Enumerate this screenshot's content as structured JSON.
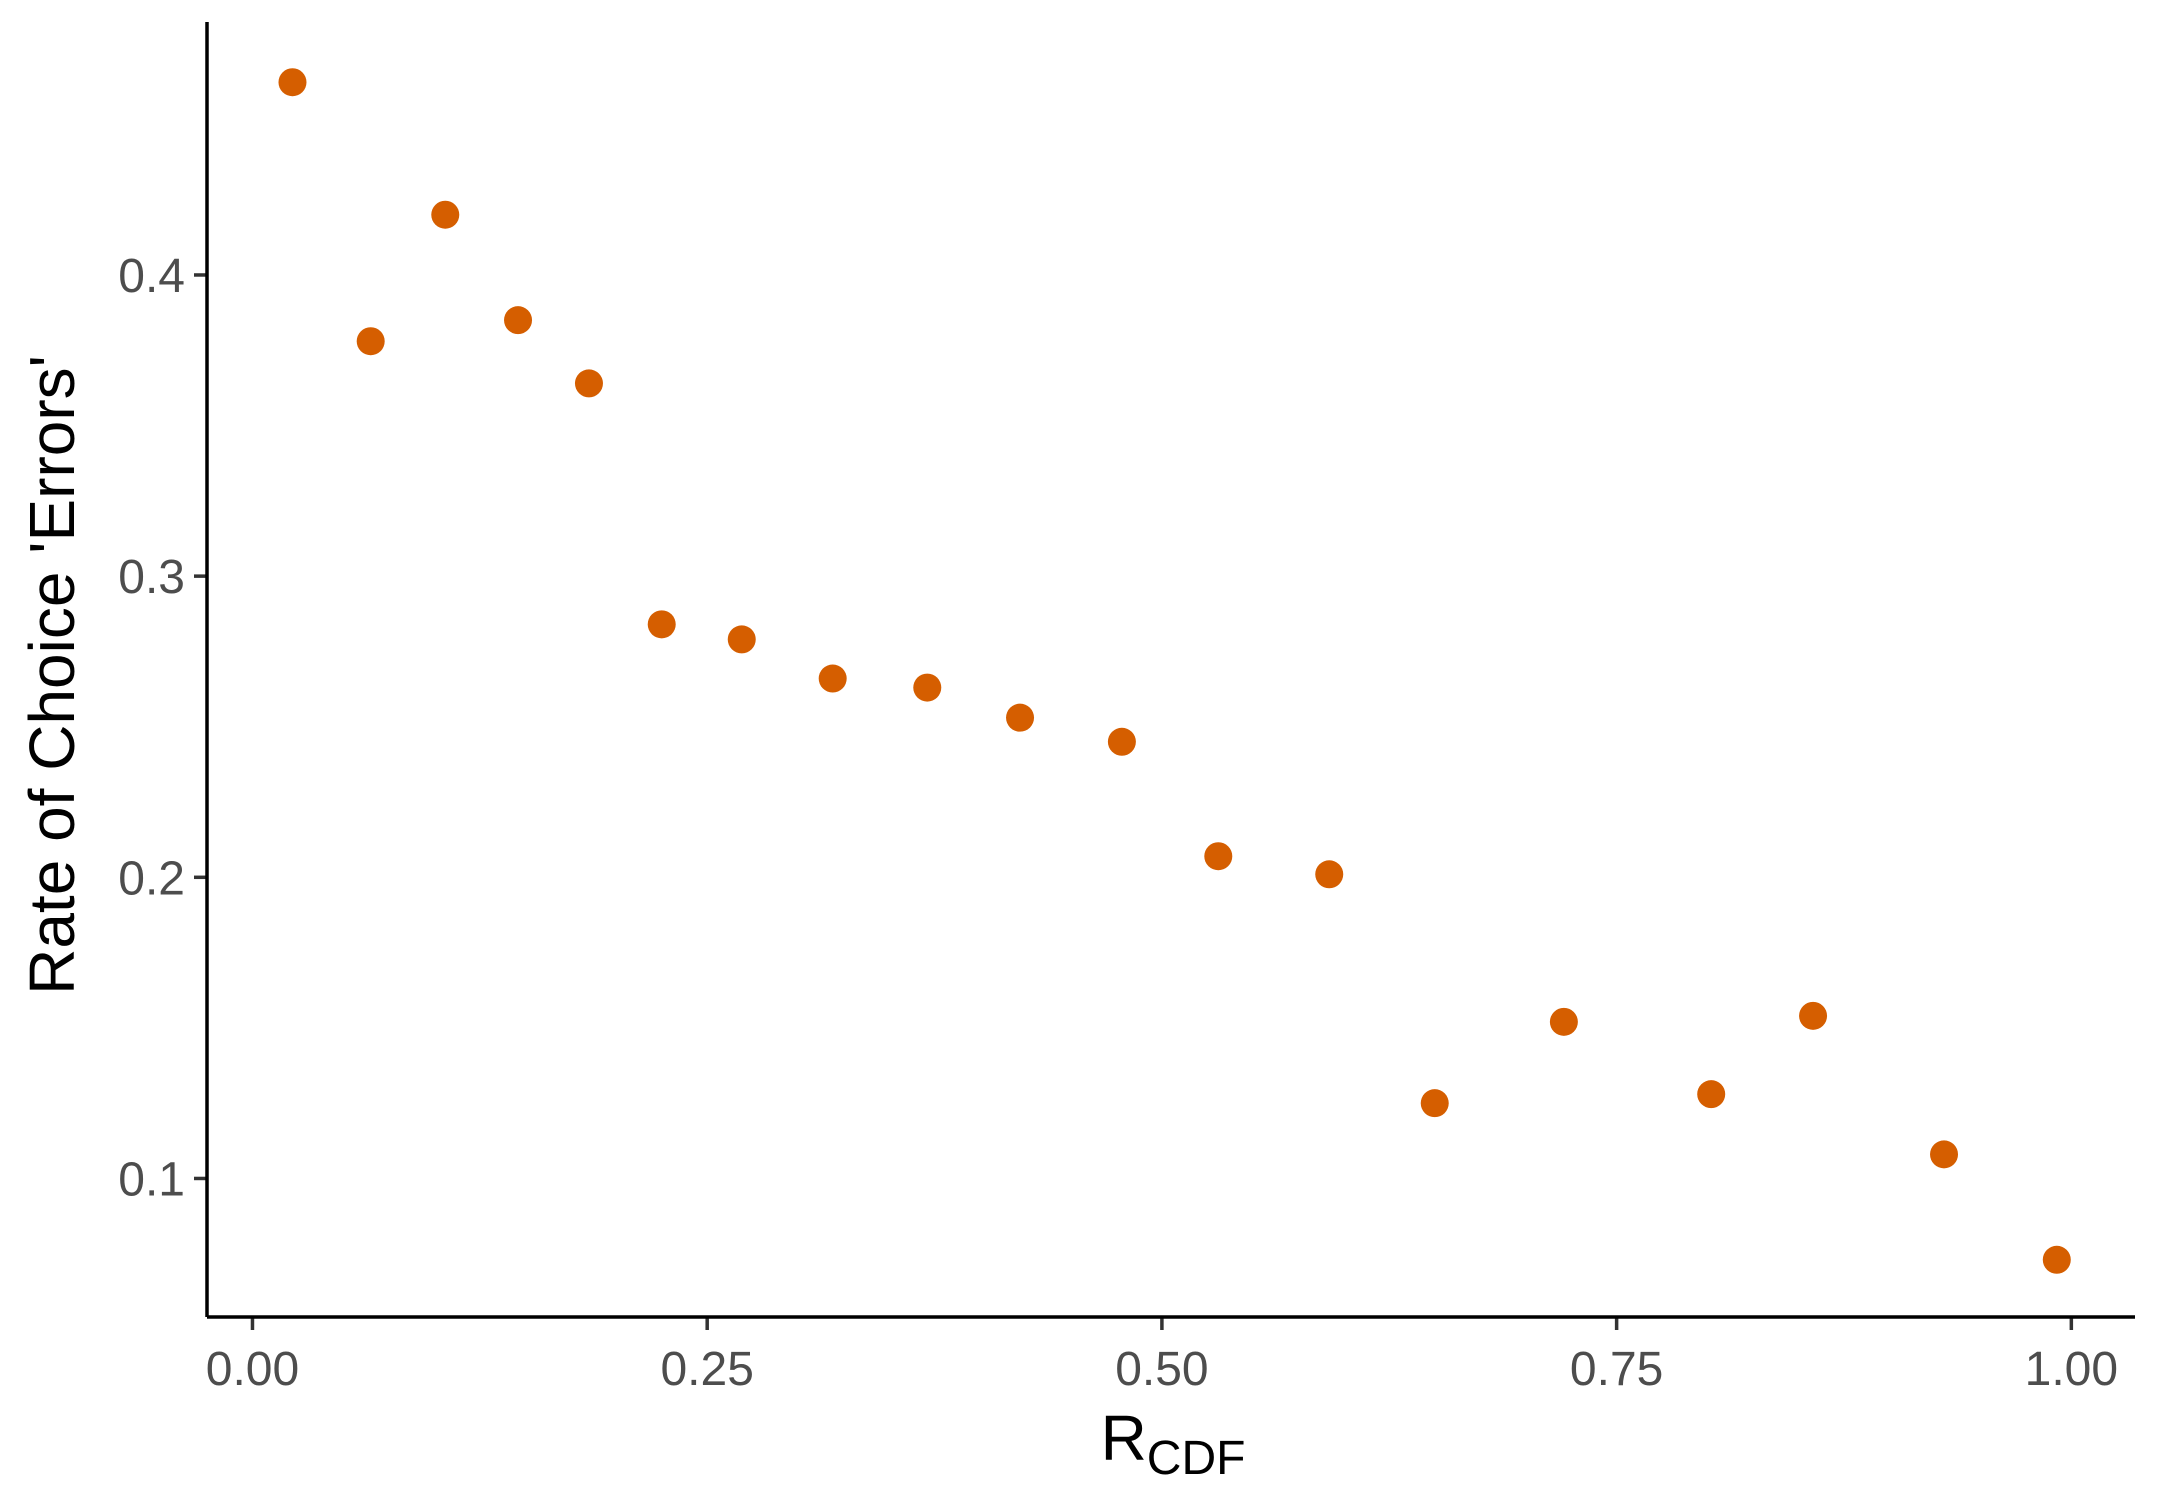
{
  "chart_data": {
    "type": "scatter",
    "title": "",
    "xlabel": {
      "main": "R",
      "subscript": "CDF"
    },
    "ylabel": "Rate of Choice 'Errors'",
    "xlim": [
      -0.025,
      1.035
    ],
    "ylim": [
      0.054,
      0.484
    ],
    "x_ticks": [
      0.0,
      0.25,
      0.5,
      0.75,
      1.0
    ],
    "x_tick_labels": [
      "0.00",
      "0.25",
      "0.50",
      "0.75",
      "1.00"
    ],
    "y_ticks": [
      0.1,
      0.2,
      0.3,
      0.4
    ],
    "y_tick_labels": [
      "0.1",
      "0.2",
      "0.3",
      "0.4"
    ],
    "grid": false,
    "point_color": "#D55E00",
    "series": [
      {
        "points": [
          {
            "x": 0.022,
            "y": 0.464
          },
          {
            "x": 0.065,
            "y": 0.378
          },
          {
            "x": 0.106,
            "y": 0.42
          },
          {
            "x": 0.146,
            "y": 0.385
          },
          {
            "x": 0.185,
            "y": 0.364
          },
          {
            "x": 0.225,
            "y": 0.284
          },
          {
            "x": 0.269,
            "y": 0.279
          },
          {
            "x": 0.319,
            "y": 0.266
          },
          {
            "x": 0.371,
            "y": 0.263
          },
          {
            "x": 0.422,
            "y": 0.253
          },
          {
            "x": 0.478,
            "y": 0.245
          },
          {
            "x": 0.531,
            "y": 0.207
          },
          {
            "x": 0.592,
            "y": 0.201
          },
          {
            "x": 0.65,
            "y": 0.125
          },
          {
            "x": 0.721,
            "y": 0.152
          },
          {
            "x": 0.802,
            "y": 0.128
          },
          {
            "x": 0.858,
            "y": 0.154
          },
          {
            "x": 0.93,
            "y": 0.108
          },
          {
            "x": 0.992,
            "y": 0.073
          }
        ]
      }
    ]
  }
}
